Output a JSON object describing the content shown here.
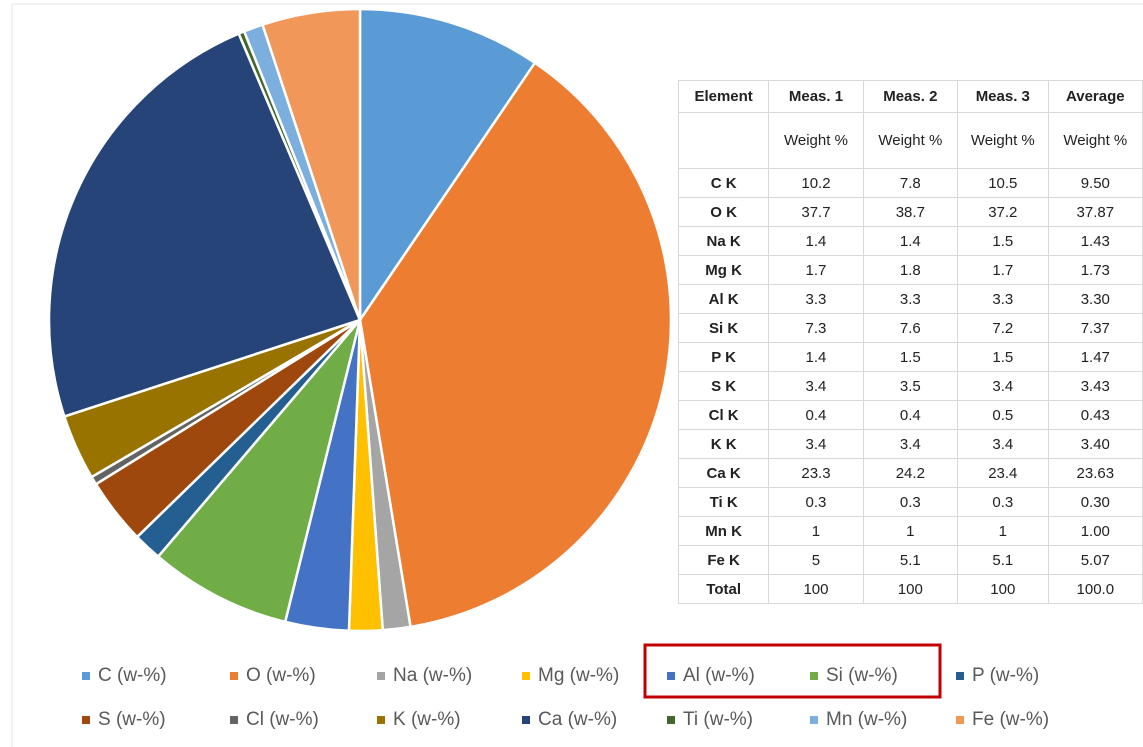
{
  "chart_data": {
    "type": "pie",
    "categories": [
      "C (w-%)",
      "O (w-%)",
      "Na (w-%)",
      "Mg (w-%)",
      "Al (w-%)",
      "Si (w-%)",
      "P (w-%)",
      "S (w-%)",
      "Cl (w-%)",
      "K (w-%)",
      "Ca (w-%)",
      "Ti (w-%)",
      "Mn (w-%)",
      "Fe (w-%)"
    ],
    "values": [
      9.5,
      37.87,
      1.43,
      1.73,
      3.3,
      7.37,
      1.47,
      3.43,
      0.43,
      3.4,
      23.63,
      0.3,
      1.0,
      5.07
    ],
    "colors": [
      "#5b9bd5",
      "#ed7d31",
      "#a5a5a5",
      "#ffc000",
      "#4472c4",
      "#70ad47",
      "#255e91",
      "#9e480e",
      "#636363",
      "#997300",
      "#264478",
      "#43682b",
      "#7cafdd",
      "#f1975a"
    ],
    "legend": "bottom"
  },
  "table": {
    "header": [
      "Element",
      "Meas. 1",
      "Meas. 2",
      "Meas. 3",
      "Average"
    ],
    "units": [
      "Weight %",
      "Weight %",
      "Weight %",
      "Weight %"
    ],
    "rows": [
      [
        "C K",
        "10.2",
        "7.8",
        "10.5",
        "9.50"
      ],
      [
        "O K",
        "37.7",
        "38.7",
        "37.2",
        "37.87"
      ],
      [
        "Na K",
        "1.4",
        "1.4",
        "1.5",
        "1.43"
      ],
      [
        "Mg K",
        "1.7",
        "1.8",
        "1.7",
        "1.73"
      ],
      [
        "Al K",
        "3.3",
        "3.3",
        "3.3",
        "3.30"
      ],
      [
        "Si K",
        "7.3",
        "7.6",
        "7.2",
        "7.37"
      ],
      [
        "P K",
        "1.4",
        "1.5",
        "1.5",
        "1.47"
      ],
      [
        "S K",
        "3.4",
        "3.5",
        "3.4",
        "3.43"
      ],
      [
        "Cl K",
        "0.4",
        "0.4",
        "0.5",
        "0.43"
      ],
      [
        "K K",
        "3.4",
        "3.4",
        "3.4",
        "3.40"
      ],
      [
        "Ca K",
        "23.3",
        "24.2",
        "23.4",
        "23.63"
      ],
      [
        "Ti K",
        "0.3",
        "0.3",
        "0.3",
        "0.30"
      ],
      [
        "Mn K",
        "1",
        "1",
        "1",
        "1.00"
      ],
      [
        "Fe K",
        "5",
        "5.1",
        "5.1",
        "5.07"
      ],
      [
        "Total",
        "100",
        "100",
        "100",
        "100.0"
      ]
    ]
  }
}
